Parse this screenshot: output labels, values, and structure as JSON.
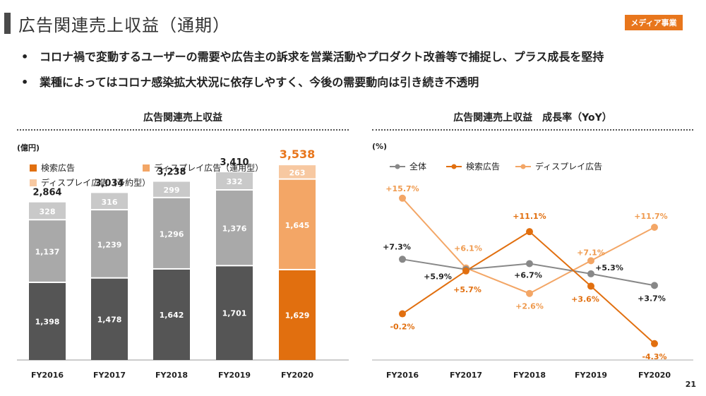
{
  "header": {
    "title": "広告関連売上収益（通期）",
    "badge": "メディア事業"
  },
  "bullets": [
    "コロナ禍で変動するユーザーの需要や広告主の訴求を営業活動やプロダクト改善等で捕捉し、プラス成長を堅持",
    "業種によってはコロナ感染拡大状況に依存しやすく、今後の需要動向は引き続き不透明"
  ],
  "bullet_mark": "•",
  "page_number": "21",
  "colors": {
    "search_past": "#555555",
    "display_op_past": "#a9a9a9",
    "display_res_past": "#c9c9c9",
    "search_2020": "#e16f0f",
    "display_op_2020": "#f3a666",
    "display_res_2020": "#f7c8a1",
    "line_total": "#888888",
    "line_search": "#e16f0f",
    "line_display": "#f3a666",
    "accent": "#e8761c"
  },
  "chart_data": [
    {
      "type": "bar",
      "stacked": true,
      "title": "広告関連売上収益",
      "unit_label": "(億円)",
      "categories": [
        "FY2016",
        "FY2017",
        "FY2018",
        "FY2019",
        "FY2020"
      ],
      "series": [
        {
          "name": "検索広告",
          "values": [
            1398,
            1478,
            1642,
            1701,
            1629
          ]
        },
        {
          "name": "ディスプレイ広告（運用型）",
          "values": [
            1137,
            1239,
            1296,
            1376,
            1645
          ]
        },
        {
          "name": "ディスプレイ広告（予約型）",
          "values": [
            328,
            316,
            299,
            332,
            263
          ]
        }
      ],
      "value_labels": [
        [
          "1,398",
          "1,478",
          "1,642",
          "1,701",
          "1,629"
        ],
        [
          "1,137",
          "1,239",
          "1,296",
          "1,376",
          "1,645"
        ],
        [
          "328",
          "316",
          "299",
          "332",
          "263"
        ]
      ],
      "totals": [
        "2,864",
        "3,034",
        "3,238",
        "3,410",
        "3,538"
      ],
      "total_values": [
        2864,
        3034,
        3238,
        3410,
        3538
      ],
      "highlight_category": "FY2020",
      "legend_position": "top-left"
    },
    {
      "type": "line",
      "title": "広告関連売上収益　成長率（YoY）",
      "unit_label": "(%)",
      "categories": [
        "FY2016",
        "FY2017",
        "FY2018",
        "FY2019",
        "FY2020"
      ],
      "series": [
        {
          "name": "全体",
          "values": [
            7.3,
            5.9,
            6.7,
            5.3,
            3.7
          ],
          "labels": [
            "+7.3%",
            "+5.9%",
            "+6.7%",
            "+5.3%",
            "+3.7%"
          ]
        },
        {
          "name": "検索広告",
          "values": [
            -0.2,
            5.7,
            11.1,
            3.6,
            -4.3
          ],
          "labels": [
            "-0.2%",
            "+5.7%",
            "+11.1%",
            "+3.6%",
            "-4.3%"
          ]
        },
        {
          "name": "ディスプレイ広告",
          "values": [
            15.7,
            6.1,
            2.6,
            7.1,
            11.7
          ],
          "labels": [
            "+15.7%",
            "+6.1%",
            "+2.6%",
            "+7.1%",
            "+11.7%"
          ]
        }
      ],
      "ylim": [
        -6,
        17
      ],
      "legend_position": "top-left"
    }
  ]
}
